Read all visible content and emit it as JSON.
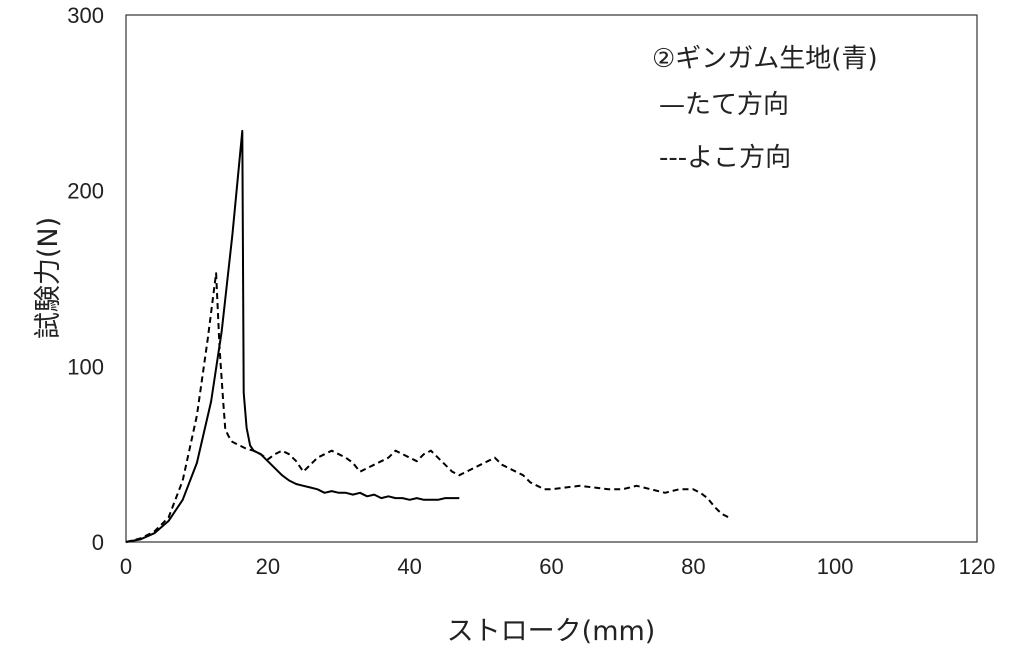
{
  "chart_data": {
    "type": "line",
    "xlabel": "ストローク(mm)",
    "ylabel": "試験力(N)",
    "xlim": [
      0,
      120
    ],
    "ylim": [
      0,
      300
    ],
    "x_ticks": [
      "0",
      "20",
      "40",
      "60",
      "80",
      "100",
      "120"
    ],
    "y_ticks": [
      "0",
      "100",
      "200",
      "300"
    ],
    "grid": false,
    "legend_placement": "top-right",
    "legend_title": "②ギンガム生地(青)",
    "series": [
      {
        "name": "たて方向",
        "line_label": "—たて方向",
        "style": "solid",
        "color": "#000000",
        "points": [
          [
            0,
            0
          ],
          [
            2,
            1.5
          ],
          [
            4,
            5
          ],
          [
            6,
            12
          ],
          [
            8,
            24
          ],
          [
            10,
            45
          ],
          [
            12,
            80
          ],
          [
            13.5,
            120
          ],
          [
            15,
            175
          ],
          [
            16.4,
            234
          ],
          [
            16.6,
            85
          ],
          [
            17,
            65
          ],
          [
            17.5,
            55
          ],
          [
            18,
            52
          ],
          [
            19,
            50
          ],
          [
            20,
            46
          ],
          [
            21,
            42
          ],
          [
            22,
            38
          ],
          [
            23,
            35
          ],
          [
            24,
            33
          ],
          [
            25,
            32
          ],
          [
            26,
            31
          ],
          [
            27,
            30
          ],
          [
            28,
            28
          ],
          [
            29,
            29
          ],
          [
            30,
            28
          ],
          [
            31,
            28
          ],
          [
            32,
            27
          ],
          [
            33,
            28
          ],
          [
            34,
            26
          ],
          [
            35,
            27
          ],
          [
            36,
            25
          ],
          [
            37,
            26
          ],
          [
            38,
            25
          ],
          [
            39,
            25
          ],
          [
            40,
            24
          ],
          [
            41,
            25
          ],
          [
            42,
            24
          ],
          [
            43,
            24
          ],
          [
            44,
            24
          ],
          [
            45,
            25
          ],
          [
            46,
            25
          ],
          [
            47,
            25
          ]
        ]
      },
      {
        "name": "よこ方向",
        "line_label": "---よこ方向",
        "style": "dashed",
        "color": "#000000",
        "points": [
          [
            0,
            0
          ],
          [
            2,
            2
          ],
          [
            4,
            6
          ],
          [
            6,
            14
          ],
          [
            8,
            35
          ],
          [
            10,
            72
          ],
          [
            11.5,
            115
          ],
          [
            12.7,
            153
          ],
          [
            13.2,
            110
          ],
          [
            13.7,
            80
          ],
          [
            14,
            64
          ],
          [
            14.5,
            60
          ],
          [
            15,
            57
          ],
          [
            16,
            55
          ],
          [
            17,
            53
          ],
          [
            18,
            52
          ],
          [
            19,
            50
          ],
          [
            20,
            47
          ],
          [
            21,
            50
          ],
          [
            22,
            52
          ],
          [
            23,
            50
          ],
          [
            24,
            46
          ],
          [
            25,
            40
          ],
          [
            26,
            44
          ],
          [
            27,
            48
          ],
          [
            28,
            50
          ],
          [
            29,
            52
          ],
          [
            30,
            50
          ],
          [
            31,
            48
          ],
          [
            32,
            45
          ],
          [
            33,
            40
          ],
          [
            34,
            42
          ],
          [
            35,
            44
          ],
          [
            36,
            46
          ],
          [
            37,
            48
          ],
          [
            38,
            52
          ],
          [
            39,
            50
          ],
          [
            40,
            48
          ],
          [
            41,
            46
          ],
          [
            42,
            50
          ],
          [
            43,
            52
          ],
          [
            44,
            48
          ],
          [
            45,
            44
          ],
          [
            46,
            40
          ],
          [
            47,
            38
          ],
          [
            48,
            40
          ],
          [
            49,
            42
          ],
          [
            50,
            44
          ],
          [
            51,
            46
          ],
          [
            52,
            48
          ],
          [
            53,
            44
          ],
          [
            54,
            42
          ],
          [
            55,
            40
          ],
          [
            56,
            38
          ],
          [
            57,
            34
          ],
          [
            58,
            32
          ],
          [
            59,
            30
          ],
          [
            60,
            30
          ],
          [
            62,
            31
          ],
          [
            64,
            32
          ],
          [
            66,
            31
          ],
          [
            68,
            30
          ],
          [
            70,
            30
          ],
          [
            72,
            32
          ],
          [
            74,
            30
          ],
          [
            76,
            28
          ],
          [
            78,
            30
          ],
          [
            80,
            30
          ],
          [
            81,
            28
          ],
          [
            82,
            25
          ],
          [
            83,
            20
          ],
          [
            84,
            16
          ],
          [
            85,
            14
          ]
        ]
      }
    ]
  }
}
